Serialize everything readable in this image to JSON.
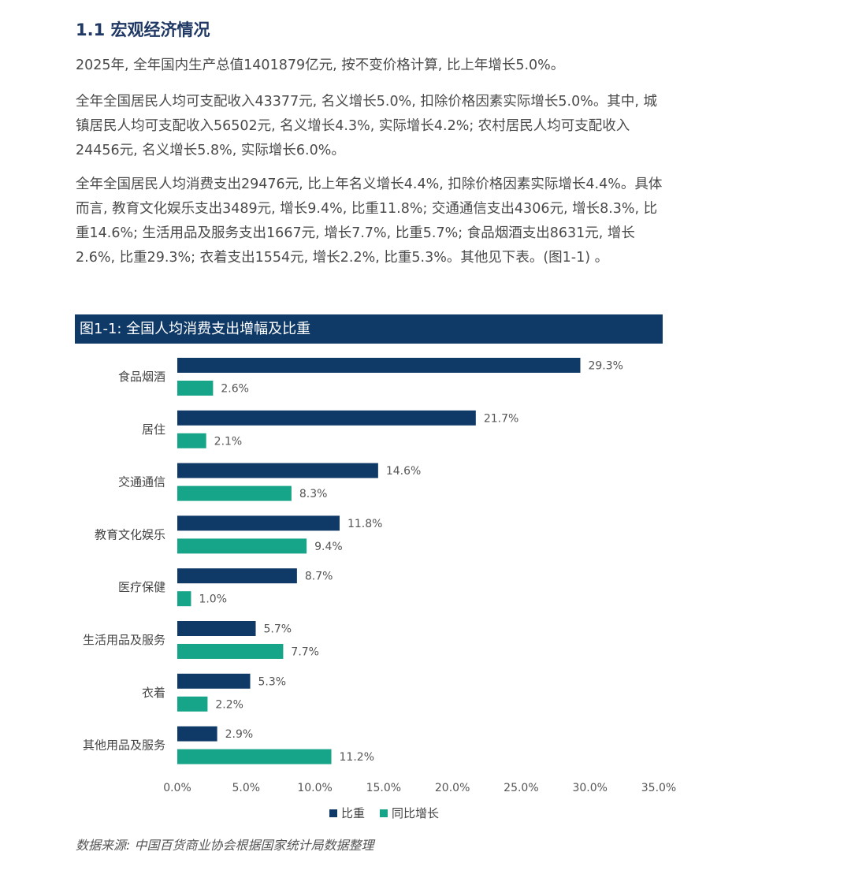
{
  "section": {
    "title": "1.1 宏观经济情况"
  },
  "paragraphs": {
    "p1": "2025年, 全年国内生产总值1401879亿元, 按不变价格计算, 比上年增长5.0%。",
    "p2": "全年全国居民人均可支配收入43377元, 名义增长5.0%, 扣除价格因素实际增长5.0%。其中, 城镇居民人均可支配收入56502元, 名义增长4.3%, 实际增长4.2%; 农村居民人均可支配收入24456元, 名义增长5.8%, 实际增长6.0%。",
    "p3": "全年全国居民人均消费支出29476元, 比上年名义增长4.4%, 扣除价格因素实际增长4.4%。具体而言, 教育文化娱乐支出3489元, 增长9.4%, 比重11.8%; 交通通信支出4306元, 增长8.3%, 比重14.6%; 生活用品及服务支出1667元, 增长7.7%, 比重5.7%; 食品烟酒支出8631元, 增长2.6%, 比重29.3%; 衣着支出1554元, 增长2.2%, 比重5.3%。其他见下表。(图1-1) 。"
  },
  "chart_header": "图1-1: 全国人均消费支出增幅及比重",
  "colors": {
    "navy": "#0f3a67",
    "teal": "#17a589"
  },
  "chart_data": {
    "type": "bar",
    "orientation": "horizontal",
    "title": "图1-1: 全国人均消费支出增幅及比重",
    "categories": [
      "食品烟酒",
      "居住",
      "交通通信",
      "教育文化娱乐",
      "医疗保健",
      "生活用品及服务",
      "衣着",
      "其他用品及服务"
    ],
    "series": [
      {
        "name": "比重",
        "color": "#0f3a67",
        "values": [
          29.3,
          21.7,
          14.6,
          11.8,
          8.7,
          5.7,
          5.3,
          2.9
        ],
        "labels": [
          "29.3%",
          "21.7%",
          "14.6%",
          "11.8%",
          "8.7%",
          "5.7%",
          "5.3%",
          "2.9%"
        ]
      },
      {
        "name": "同比增长",
        "color": "#17a589",
        "values": [
          2.6,
          2.1,
          8.3,
          9.4,
          1.0,
          7.7,
          2.2,
          11.2
        ],
        "labels": [
          "2.6%",
          "2.1%",
          "8.3%",
          "9.4%",
          "1.0%",
          "7.7%",
          "2.2%",
          "11.2%"
        ]
      }
    ],
    "xlim": [
      0,
      35
    ],
    "xticks": [
      "0.0%",
      "5.0%",
      "10.0%",
      "15.0%",
      "20.0%",
      "25.0%",
      "30.0%",
      "35.0%"
    ],
    "grid": false,
    "legend": "bottom-center"
  },
  "source_note": "数据来源: 中国百货商业协会根据国家统计局数据整理"
}
